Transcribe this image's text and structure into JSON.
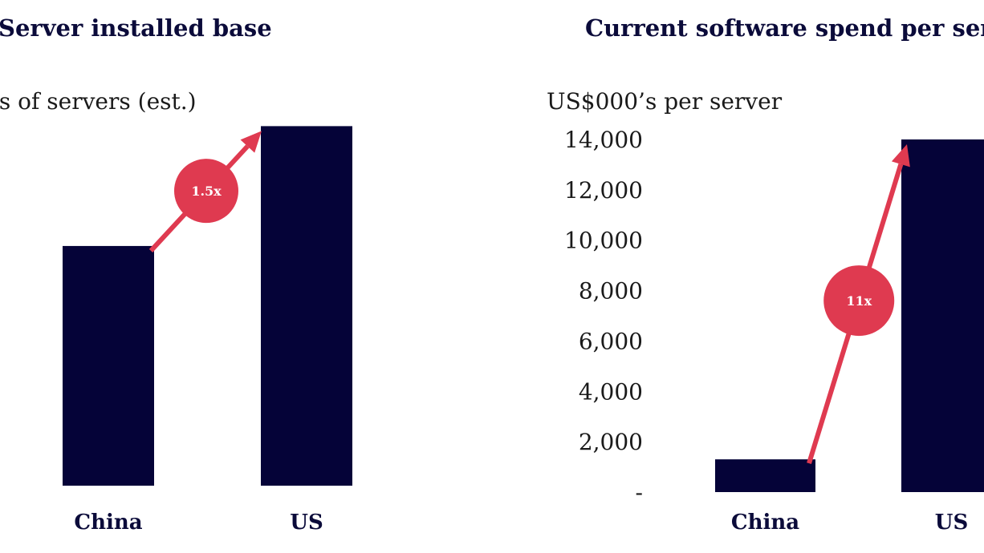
{
  "colors": {
    "bar": "#050338",
    "accent": "#df3a50",
    "text": "#0b0b3a"
  },
  "chart_data": [
    {
      "type": "bar",
      "title": "Server installed base",
      "ylabel": "ons of servers (est.)",
      "xlabel": "",
      "categories": [
        "China",
        "US"
      ],
      "values": [
        8.0,
        12.0
      ],
      "ylim": [
        0,
        13
      ],
      "ticks": [],
      "grid": false,
      "annotation": {
        "label": "1.5x",
        "from": "China",
        "to": "US"
      }
    },
    {
      "type": "bar",
      "title": "Current software spend per serve",
      "ylabel": "US$000’s per server",
      "xlabel": "",
      "categories": [
        "China",
        "US"
      ],
      "values": [
        1300,
        14000
      ],
      "ylim": [
        0,
        14000
      ],
      "ticks": [
        {
          "value": 14000,
          "label": "14,000"
        },
        {
          "value": 12000,
          "label": "12,000"
        },
        {
          "value": 10000,
          "label": "10,000"
        },
        {
          "value": 8000,
          "label": "8,000"
        },
        {
          "value": 6000,
          "label": "6,000"
        },
        {
          "value": 4000,
          "label": "4,000"
        },
        {
          "value": 2000,
          "label": "2,000"
        },
        {
          "value": 0,
          "label": "-"
        }
      ],
      "grid": false,
      "annotation": {
        "label": "11x",
        "from": "China",
        "to": "US"
      }
    }
  ]
}
